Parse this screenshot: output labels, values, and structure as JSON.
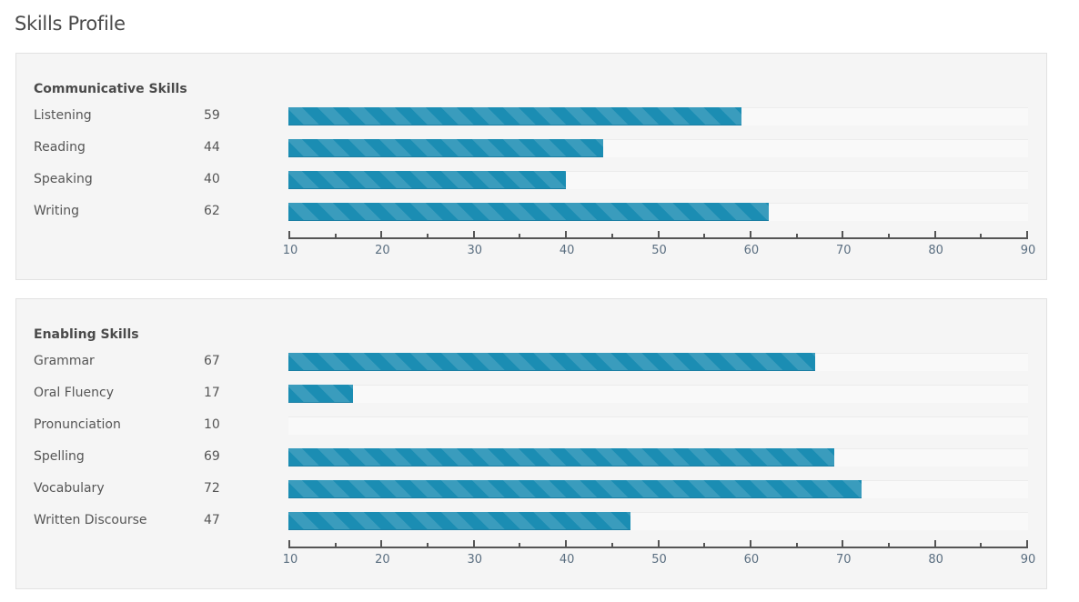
{
  "page_title": "Skills Profile",
  "chart_data": [
    {
      "type": "bar",
      "orientation": "horizontal",
      "title": "Communicative Skills",
      "categories": [
        "Listening",
        "Reading",
        "Speaking",
        "Writing"
      ],
      "values": [
        59,
        44,
        40,
        62
      ],
      "xlim": [
        10,
        90
      ],
      "ticks": [
        10,
        20,
        30,
        40,
        50,
        60,
        70,
        80,
        90
      ],
      "bar_color": "#1b8db3"
    },
    {
      "type": "bar",
      "orientation": "horizontal",
      "title": "Enabling Skills",
      "categories": [
        "Grammar",
        "Oral Fluency",
        "Pronunciation",
        "Spelling",
        "Vocabulary",
        "Written Discourse"
      ],
      "values": [
        67,
        17,
        10,
        69,
        72,
        47
      ],
      "xlim": [
        10,
        90
      ],
      "ticks": [
        10,
        20,
        30,
        40,
        50,
        60,
        70,
        80,
        90
      ],
      "bar_color": "#1b8db3"
    }
  ]
}
